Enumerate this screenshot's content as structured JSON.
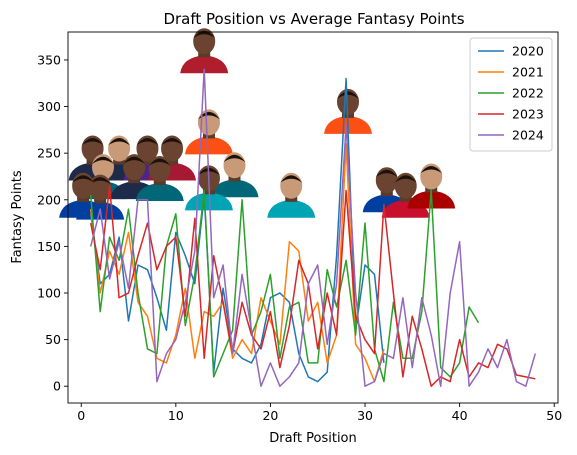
{
  "chart_data": {
    "type": "line",
    "title": "Draft Position vs Average Fantasy Points",
    "xlabel": "Draft Position",
    "ylabel": "Fantasy Points",
    "xlim": [
      -1.4,
      50.4
    ],
    "ylim": [
      -18,
      380
    ],
    "xticks": [
      0,
      10,
      20,
      30,
      40,
      50
    ],
    "yticks": [
      0,
      50,
      100,
      150,
      200,
      250,
      300,
      350
    ],
    "grid": false,
    "legend_position": "top-right",
    "series": [
      {
        "name": "2020",
        "color": "#1f77b4",
        "x": [
          1,
          2,
          3,
          4,
          5,
          6,
          7,
          8,
          9,
          10,
          11,
          12,
          13,
          14,
          15,
          16,
          17,
          18,
          19,
          20,
          21,
          22,
          23,
          24,
          25,
          26,
          27,
          28,
          29,
          30,
          31,
          32
        ],
        "y": [
          185,
          110,
          120,
          160,
          70,
          130,
          125,
          95,
          60,
          165,
          140,
          110,
          205,
          15,
          105,
          40,
          30,
          25,
          45,
          95,
          100,
          90,
          35,
          10,
          5,
          15,
          140,
          330,
          60,
          130,
          120,
          25
        ]
      },
      {
        "name": "2021",
        "color": "#ff7f0e",
        "x": [
          1,
          2,
          3,
          4,
          5,
          6,
          7,
          8,
          9,
          10,
          11,
          12,
          13,
          14,
          15,
          16,
          17,
          18,
          19,
          20,
          21,
          22,
          23,
          24,
          25,
          26,
          27,
          28,
          29,
          30,
          31,
          32
        ],
        "y": [
          190,
          100,
          145,
          120,
          165,
          90,
          75,
          30,
          25,
          55,
          105,
          30,
          80,
          75,
          90,
          30,
          50,
          35,
          95,
          70,
          45,
          155,
          145,
          70,
          90,
          25,
          55,
          260,
          45,
          30,
          5,
          40
        ]
      },
      {
        "name": "2022",
        "color": "#2ca02c",
        "x": [
          1,
          2,
          3,
          4,
          5,
          6,
          7,
          8,
          9,
          10,
          11,
          12,
          13,
          14,
          15,
          16,
          17,
          18,
          19,
          20,
          21,
          22,
          23,
          24,
          25,
          26,
          27,
          28,
          29,
          30,
          31,
          32,
          33,
          34,
          35,
          36,
          37,
          38,
          39,
          40,
          41,
          42
        ],
        "y": [
          205,
          80,
          160,
          135,
          190,
          100,
          40,
          35,
          150,
          185,
          65,
          120,
          210,
          10,
          35,
          60,
          200,
          55,
          80,
          120,
          30,
          85,
          90,
          25,
          25,
          125,
          85,
          135,
          55,
          175,
          40,
          5,
          90,
          30,
          30,
          80,
          210,
          20,
          10,
          25,
          85,
          68
        ]
      },
      {
        "name": "2023",
        "color": "#d62728",
        "x": [
          1,
          2,
          3,
          4,
          5,
          6,
          7,
          8,
          9,
          10,
          11,
          12,
          13,
          14,
          15,
          16,
          17,
          18,
          19,
          20,
          21,
          22,
          23,
          24,
          25,
          26,
          27,
          28,
          29,
          30,
          31,
          32,
          33,
          34,
          35,
          36,
          37,
          38,
          39,
          40,
          41,
          42,
          43,
          44,
          45,
          46,
          47,
          48
        ],
        "y": [
          175,
          125,
          215,
          95,
          100,
          140,
          175,
          125,
          150,
          160,
          75,
          180,
          30,
          140,
          90,
          35,
          90,
          55,
          40,
          80,
          20,
          65,
          135,
          110,
          40,
          100,
          55,
          210,
          75,
          50,
          35,
          195,
          100,
          10,
          75,
          40,
          0,
          10,
          5,
          50,
          10,
          25,
          20,
          45,
          40,
          12,
          10,
          8
        ]
      },
      {
        "name": "2024",
        "color": "#9467bd",
        "x": [
          1,
          2,
          3,
          4,
          5,
          6,
          7,
          8,
          9,
          10,
          11,
          12,
          13,
          14,
          15,
          16,
          17,
          18,
          19,
          20,
          21,
          22,
          23,
          24,
          25,
          26,
          27,
          28,
          29,
          30,
          31,
          32,
          33,
          34,
          35,
          36,
          37,
          38,
          39,
          40,
          41,
          42,
          43,
          44,
          45,
          46,
          47,
          48
        ],
        "y": [
          150,
          190,
          115,
          155,
          105,
          200,
          200,
          5,
          35,
          50,
          90,
          145,
          340,
          95,
          130,
          35,
          120,
          60,
          0,
          25,
          0,
          10,
          25,
          110,
          130,
          45,
          110,
          280,
          100,
          0,
          5,
          35,
          30,
          95,
          20,
          95,
          55,
          0,
          100,
          155,
          0,
          15,
          40,
          20,
          50,
          5,
          0,
          35
        ]
      }
    ],
    "player_images": [
      {
        "name": "player-photo-top",
        "dx": 13.0,
        "dy": 355,
        "jersey": "#b01e2e"
      },
      {
        "name": "player-photo-a",
        "dx": 13.5,
        "dy": 268,
        "jersey": "#fb4f14"
      },
      {
        "name": "player-photo-b",
        "dx": 28.2,
        "dy": 290,
        "jersey": "#fb4f14"
      },
      {
        "name": "player-photo-c",
        "dx": 1.2,
        "dy": 240,
        "jersey": "#1e2a4a"
      },
      {
        "name": "player-photo-d",
        "dx": 4.0,
        "dy": 240,
        "jersey": "#1e2a4a"
      },
      {
        "name": "player-photo-e",
        "dx": 7.0,
        "dy": 240,
        "jersey": "#4f2683"
      },
      {
        "name": "player-photo-f",
        "dx": 9.6,
        "dy": 240,
        "jersey": "#a71930"
      },
      {
        "name": "player-photo-g",
        "dx": 2.3,
        "dy": 220,
        "jersey": "#006778"
      },
      {
        "name": "player-photo-h",
        "dx": 5.6,
        "dy": 220,
        "jersey": "#1e2a4a"
      },
      {
        "name": "player-photo-i",
        "dx": 8.3,
        "dy": 218,
        "jersey": "#006778"
      },
      {
        "name": "player-photo-j",
        "dx": 16.2,
        "dy": 222,
        "jersey": "#006778"
      },
      {
        "name": "player-photo-k",
        "dx": 2.0,
        "dy": 198,
        "jersey": "#003f9f"
      },
      {
        "name": "player-photo-l",
        "dx": 13.5,
        "dy": 208,
        "jersey": "#00a4b4"
      },
      {
        "name": "player-photo-m",
        "dx": 22.2,
        "dy": 200,
        "jersey": "#00a4b4"
      },
      {
        "name": "player-photo-n",
        "dx": 32.3,
        "dy": 206,
        "jersey": "#003f9f"
      },
      {
        "name": "player-photo-o",
        "dx": 34.3,
        "dy": 200,
        "jersey": "#c8102e"
      },
      {
        "name": "player-photo-p",
        "dx": 37.0,
        "dy": 210,
        "jersey": "#aa0000"
      },
      {
        "name": "player-photo-q",
        "dx": 0.2,
        "dy": 200,
        "jersey": "#003f9f"
      }
    ]
  }
}
